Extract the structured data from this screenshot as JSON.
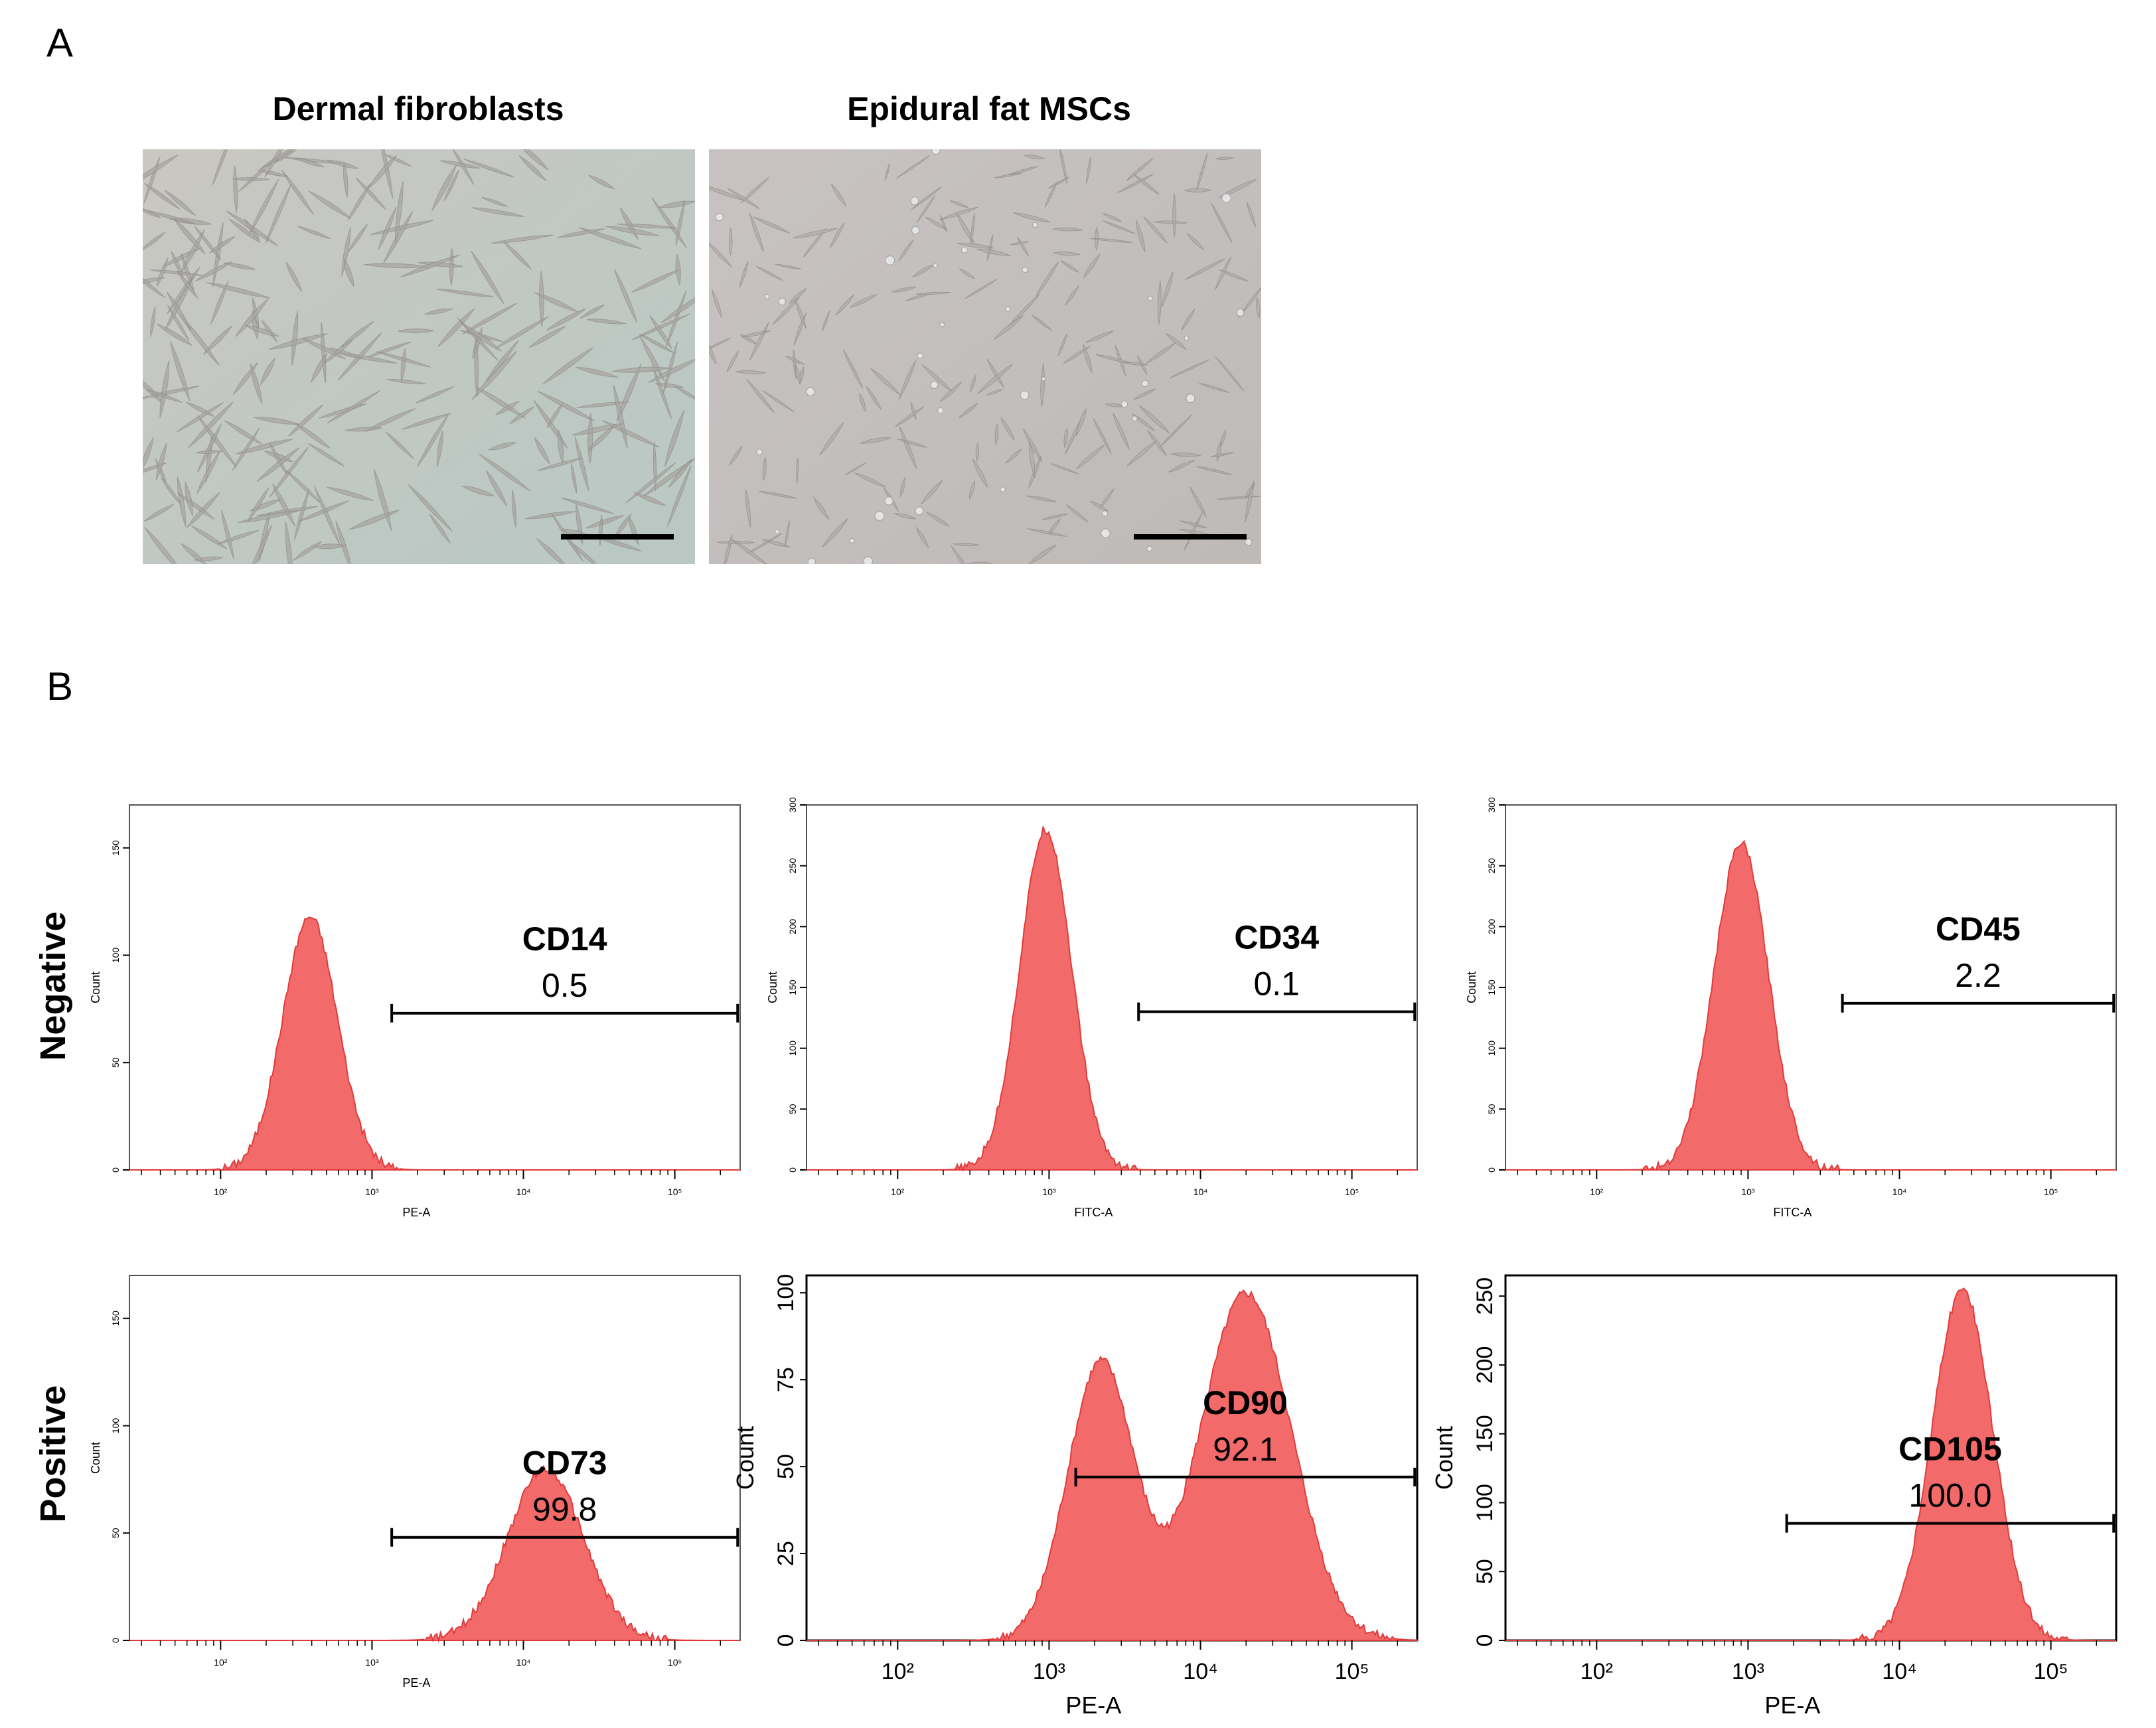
{
  "panel_a": {
    "letter": "A",
    "images": [
      {
        "title": "Dermal fibroblasts",
        "tone": "#c9c7c2",
        "edge": "#b9c8c4"
      },
      {
        "title": "Epidural fat MSCs",
        "tone": "#c8c3c2",
        "edge": "#bdbab8"
      }
    ]
  },
  "panel_b": {
    "letter": "B",
    "row_labels": {
      "negative": "Negative",
      "positive": "Positive"
    }
  },
  "colors": {
    "fill": "#f26a6a",
    "stroke": "#e23a3a",
    "axis": "#000000"
  },
  "chart_data": [
    {
      "type": "area",
      "title": "CD14",
      "gate_value": "0.5",
      "xlabel": "PE-A",
      "ylabel": "Count",
      "yticks": [
        "0",
        "50",
        "100",
        "150"
      ],
      "ylim": [
        0,
        170
      ],
      "xscale": "log",
      "xlim": [
        25,
        270000
      ],
      "xticks": [
        "10²",
        "10³",
        "10⁴",
        "10⁵"
      ],
      "gate": [
        1350,
        260000
      ],
      "gate_y": 73,
      "peaks": [
        {
          "x": 390,
          "y": 118,
          "w": 0.18
        }
      ],
      "small_style": true
    },
    {
      "type": "area",
      "title": "CD34",
      "gate_value": "0.1",
      "xlabel": "FITC-A",
      "ylabel": "Count",
      "yticks": [
        "0",
        "50",
        "100",
        "150",
        "200",
        "250",
        "300"
      ],
      "ylim": [
        0,
        300
      ],
      "xscale": "log",
      "xlim": [
        25,
        270000
      ],
      "xticks": [
        "10²",
        "10³",
        "10⁴",
        "10⁵"
      ],
      "gate": [
        3900,
        260000
      ],
      "gate_y": 130,
      "peaks": [
        {
          "x": 950,
          "y": 280,
          "w": 0.17
        }
      ],
      "small_style": true
    },
    {
      "type": "area",
      "title": "CD45",
      "gate_value": "2.2",
      "xlabel": "FITC-A",
      "ylabel": "Count",
      "yticks": [
        "0",
        "50",
        "100",
        "150",
        "200",
        "250",
        "300"
      ],
      "ylim": [
        0,
        300
      ],
      "xscale": "log",
      "xlim": [
        25,
        270000
      ],
      "xticks": [
        "10²",
        "10³",
        "10⁴",
        "10⁵"
      ],
      "gate": [
        4200,
        260000
      ],
      "gate_y": 137,
      "peaks": [
        {
          "x": 900,
          "y": 268,
          "w": 0.18
        }
      ],
      "small_style": true
    },
    {
      "type": "area",
      "title": "CD73",
      "gate_value": "99.8",
      "xlabel": "PE-A",
      "ylabel": "Count",
      "yticks": [
        "0",
        "50",
        "100",
        "150"
      ],
      "ylim": [
        0,
        170
      ],
      "xscale": "log",
      "xlim": [
        25,
        270000
      ],
      "xticks": [
        "10²",
        "10³",
        "10⁴",
        "10⁵"
      ],
      "gate": [
        1350,
        260000
      ],
      "gate_y": 48,
      "peaks": [
        {
          "x": 14000,
          "y": 80,
          "w": 0.25
        }
      ],
      "small_style": true
    },
    {
      "type": "area",
      "title": "CD90",
      "gate_value": "92.1",
      "xlabel": "PE-A",
      "ylabel": "Count",
      "yticks": [
        "0",
        "25",
        "50",
        "75",
        "100"
      ],
      "ylim": [
        0,
        105
      ],
      "xscale": "log",
      "xlim": [
        25,
        270000
      ],
      "xticks": [
        "10²",
        "10³",
        "10⁴",
        "10⁵"
      ],
      "gate": [
        1500,
        260000
      ],
      "gate_y": 47,
      "peaks": [
        {
          "x": 2200,
          "y": 80,
          "w": 0.22
        },
        {
          "x": 20000,
          "y": 100,
          "w": 0.3
        }
      ],
      "small_style": false
    },
    {
      "type": "area",
      "title": "CD105",
      "gate_value": "100.0",
      "xlabel": "PE-A",
      "ylabel": "Count",
      "yticks": [
        "0",
        "50",
        "100",
        "150",
        "200",
        "250"
      ],
      "ylim": [
        0,
        265
      ],
      "xscale": "log",
      "xlim": [
        25,
        270000
      ],
      "xticks": [
        "10²",
        "10³",
        "10⁴",
        "10⁵"
      ],
      "gate": [
        1800,
        260000
      ],
      "gate_y": 85,
      "peaks": [
        {
          "x": 26000,
          "y": 255,
          "w": 0.2
        }
      ],
      "small_style": false
    }
  ]
}
